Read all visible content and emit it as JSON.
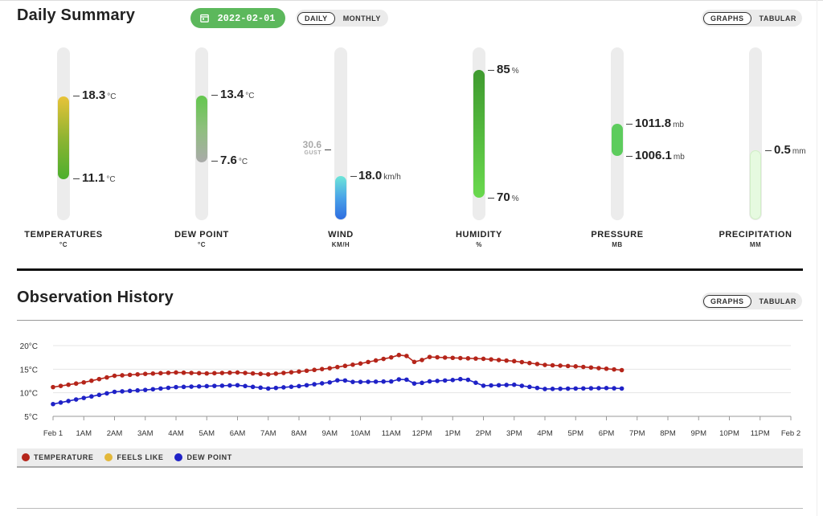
{
  "summary": {
    "title": "Daily Summary",
    "date": "2022-02-01",
    "period_toggle": [
      "DAILY",
      "MONTHLY"
    ],
    "view_toggle": [
      "GRAPHS",
      "TABULAR"
    ]
  },
  "gauges": {
    "temperature": {
      "label": "TEMPERATURES",
      "unit_label": "°C",
      "high": "18.3",
      "low": "11.1",
      "unit": "°C",
      "high_color": "#e8c338",
      "low_color": "#4caf2e"
    },
    "dewpoint": {
      "label": "DEW POINT",
      "unit_label": "°C",
      "high": "13.4",
      "low": "7.6",
      "unit": "°C",
      "high_color": "#63c74d",
      "low_color": "#aaaaaa"
    },
    "wind": {
      "label": "WIND",
      "unit_label": "KM/H",
      "gust_value": "30.6",
      "gust_label": "GUST",
      "value": "18.0",
      "unit": "km/h",
      "top_color": "#6ee6d8",
      "bottom_color": "#2f6de0"
    },
    "humidity": {
      "label": "HUMIDITY",
      "unit_label": "%",
      "high": "85",
      "low": "70",
      "unit": "%",
      "top_color": "#3f9a2f",
      "bottom_color": "#6ad94e"
    },
    "pressure": {
      "label": "PRESSURE",
      "unit_label": "MB",
      "high": "1011.8",
      "low": "1006.1",
      "unit": "mb",
      "color": "#5dcc5d"
    },
    "precipitation": {
      "label": "PRECIPITATION",
      "unit_label": "MM",
      "value": "0.5",
      "unit": "mm",
      "color": "#e6fae0"
    }
  },
  "history": {
    "title": "Observation History",
    "view_toggle": [
      "GRAPHS",
      "TABULAR"
    ],
    "legend": [
      {
        "name": "TEMPERATURE",
        "color": "#b5251a"
      },
      {
        "name": "FEELS LIKE",
        "color": "#e3b83a"
      },
      {
        "name": "DEW POINT",
        "color": "#1f22c7"
      }
    ]
  },
  "chart_data": {
    "type": "line",
    "y_ticks": [
      "20°C",
      "15°C",
      "10°C",
      "5°C"
    ],
    "ylim": [
      5,
      20
    ],
    "x_ticks": [
      "Feb 1",
      "1AM",
      "2AM",
      "3AM",
      "4AM",
      "5AM",
      "6AM",
      "7AM",
      "8AM",
      "9AM",
      "10AM",
      "11AM",
      "12PM",
      "1PM",
      "2PM",
      "3PM",
      "4PM",
      "5PM",
      "6PM",
      "7PM",
      "8PM",
      "9PM",
      "10PM",
      "11PM",
      "Feb 2"
    ],
    "x_unit": "hours",
    "series": [
      {
        "name": "TEMPERATURE",
        "color": "#b5251a",
        "x": [
          0,
          1,
          2,
          3,
          4,
          5,
          6,
          7,
          8,
          9,
          10,
          11,
          11.4,
          11.8,
          12.2,
          13,
          14,
          15,
          16,
          17,
          18,
          18.5
        ],
        "y": [
          11.2,
          12.2,
          13.6,
          14.0,
          14.3,
          14.1,
          14.3,
          13.9,
          14.5,
          15.2,
          16.2,
          17.5,
          18.3,
          16.3,
          17.6,
          17.4,
          17.2,
          16.7,
          15.9,
          15.6,
          15.1,
          14.8
        ]
      },
      {
        "name": "DEW POINT",
        "color": "#1f22c7",
        "x": [
          0,
          1,
          2,
          3,
          4,
          5,
          6,
          7,
          8,
          9,
          9.4,
          9.6,
          10,
          11,
          11.4,
          11.8,
          12.2,
          13,
          13.4,
          14,
          15,
          16,
          17,
          18,
          18.5
        ],
        "y": [
          7.6,
          8.9,
          10.2,
          10.6,
          11.2,
          11.4,
          11.6,
          10.9,
          11.4,
          12.2,
          12.9,
          12.3,
          12.3,
          12.4,
          13.1,
          11.8,
          12.4,
          12.7,
          13.0,
          11.5,
          11.7,
          10.8,
          10.9,
          11.0,
          10.9
        ]
      }
    ]
  }
}
